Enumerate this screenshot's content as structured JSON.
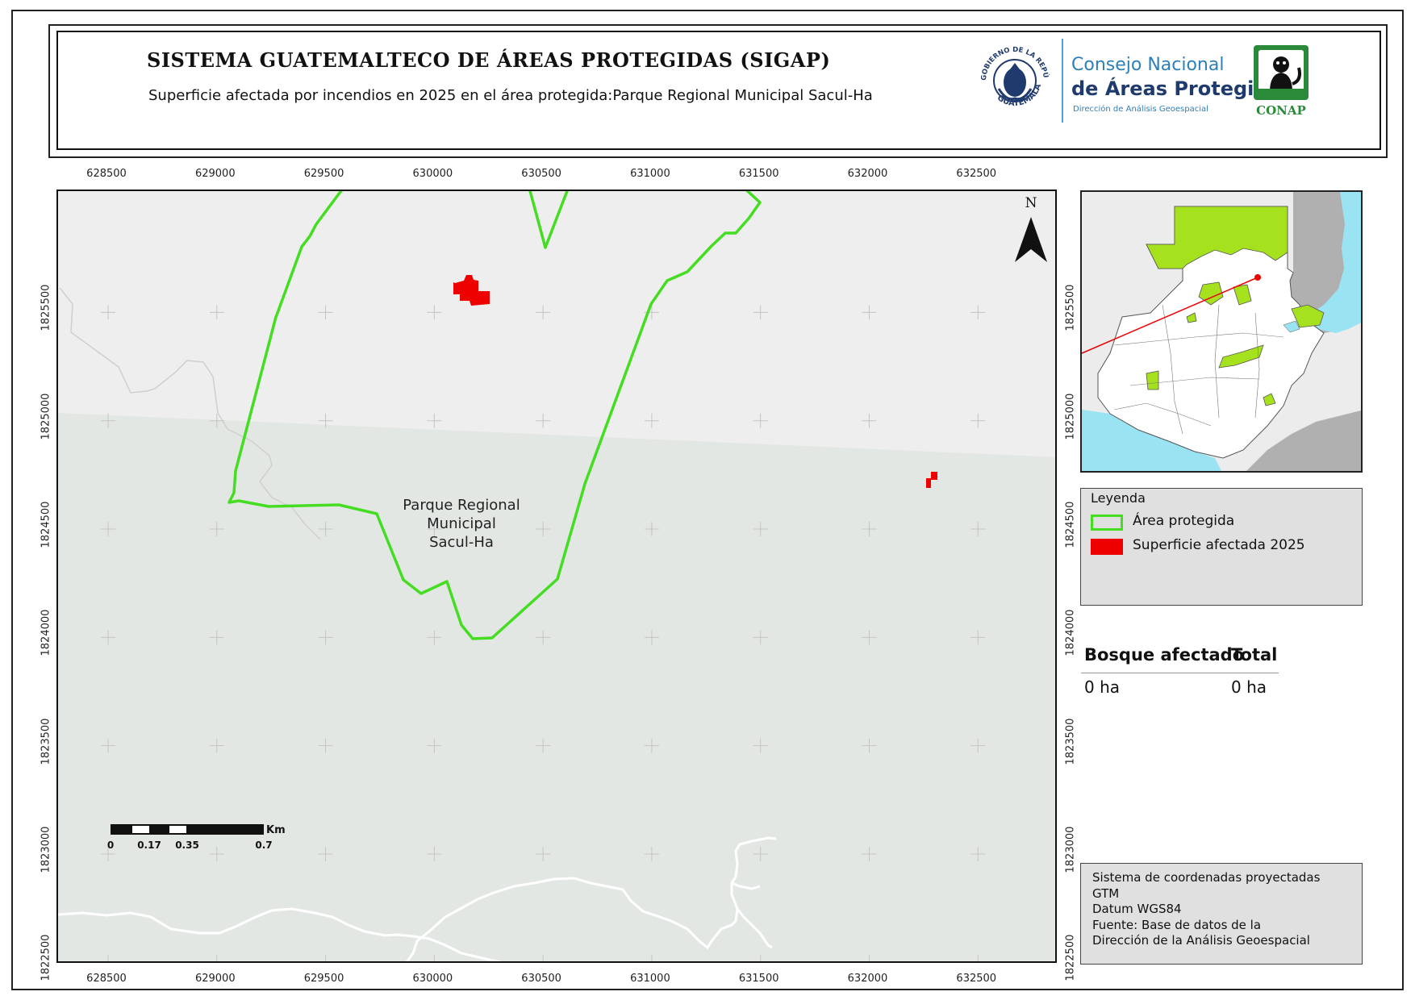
{
  "header": {
    "title": "SISTEMA GUATEMALTECO DE ÁREAS PROTEGIDAS  (SIGAP)",
    "subtitle": "Superficie afectada por incendios en 2025 en el área protegida:Parque Regional Municipal Sacul-Ha",
    "seal_text_top": "GOBIERNO DE LA REPÚBLICA",
    "seal_text_bottom": "GUATEMALA",
    "conap_line1": "Consejo Nacional",
    "conap_line2": "de Áreas Protegidas",
    "conap_line3": "Dirección de Análisis Geoespacial",
    "conap_wordmark": "CONAP"
  },
  "axes": {
    "x_ticks": [
      "628500",
      "629000",
      "629500",
      "630000",
      "630500",
      "631000",
      "631500",
      "632000",
      "632500"
    ],
    "y_ticks": [
      "1825500",
      "1825000",
      "1824500",
      "1824000",
      "1823500",
      "1823000",
      "1822500"
    ],
    "x_range": [
      628270,
      632870
    ],
    "y_range": [
      1822490,
      1826060
    ]
  },
  "map": {
    "area_label": [
      "Parque Regional",
      "Municipal",
      "Sacul-Ha"
    ],
    "north_label": "N",
    "protected_area_color": "#44dd22",
    "burned_color": "#ee0000",
    "scalebar": {
      "labels": [
        "0",
        "0.17",
        "0.35",
        "0.7"
      ],
      "unit": "Km"
    }
  },
  "legend": {
    "title": "Leyenda",
    "items": [
      {
        "label": "Área protegida",
        "color": "#44dd22",
        "style": "outline"
      },
      {
        "label": "Superficie afectada 2025",
        "color": "#ee0000",
        "style": "fill"
      }
    ]
  },
  "stats": {
    "headers": [
      "Bosque afectado",
      "Total"
    ],
    "values": [
      "0 ha",
      "0 ha"
    ]
  },
  "info": {
    "lines": [
      "Sistema de coordenadas proyectadas",
      "GTM",
      "Datum WGS84",
      "Fuente: Base de datos de la",
      "Dirección de la Análisis Geoespacial"
    ]
  }
}
